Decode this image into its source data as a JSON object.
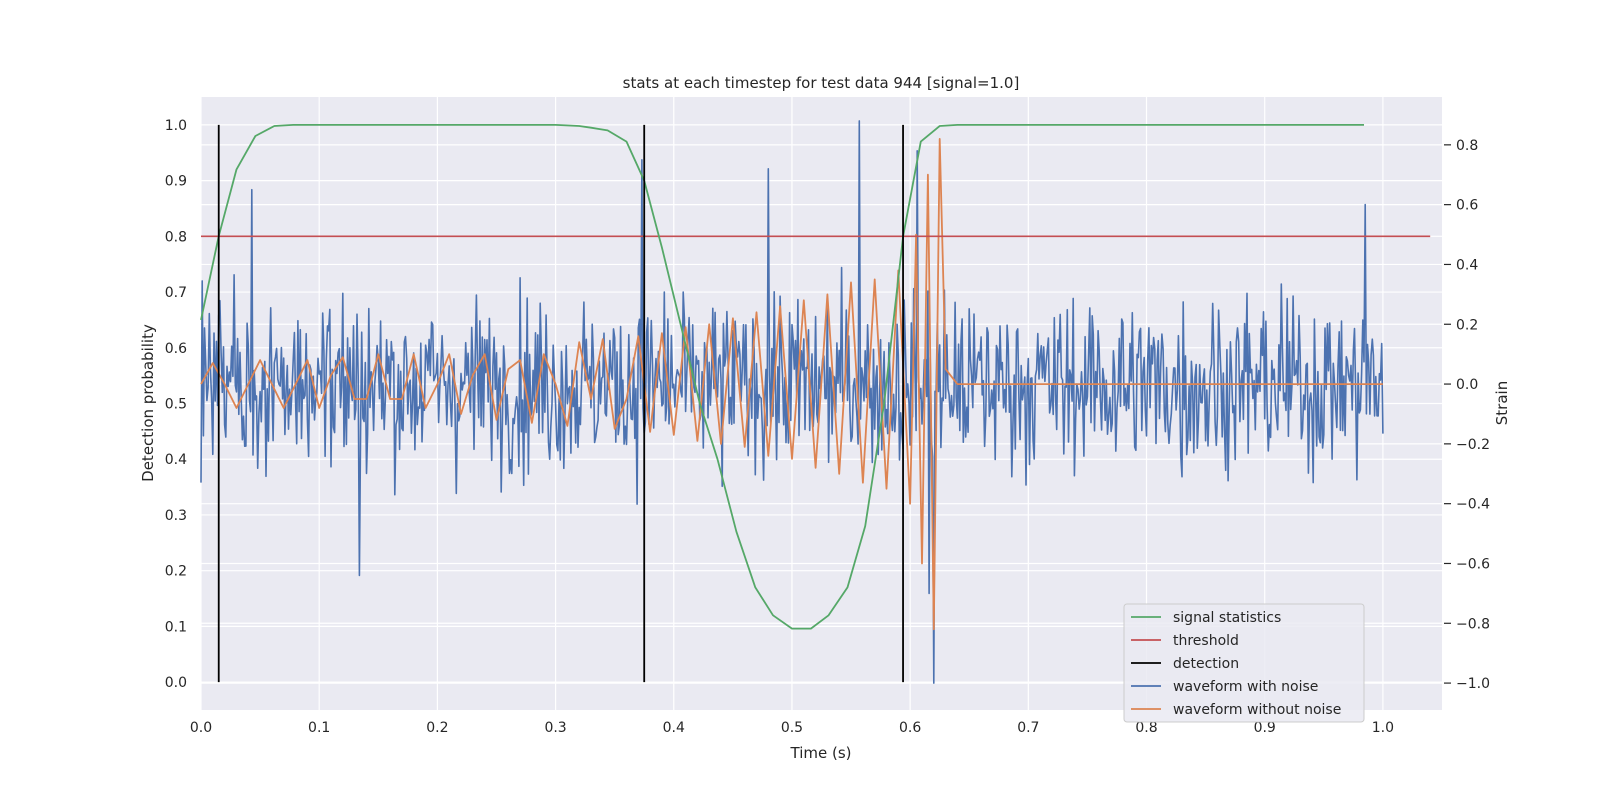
{
  "chart_data": {
    "type": "line",
    "title": "stats at each timestep for test data 944 [signal=1.0]",
    "xlabel": "Time (s)",
    "ylabel": "Detection probability",
    "ylabel_right": "Strain",
    "xlim": [
      0.0,
      1.05
    ],
    "ylim": [
      -0.05,
      1.05
    ],
    "ylim_right": [
      -1.09,
      0.96
    ],
    "x_ticks": [
      "0.0",
      "0.1",
      "0.2",
      "0.3",
      "0.4",
      "0.5",
      "0.6",
      "0.7",
      "0.8",
      "0.9",
      "1.0"
    ],
    "y_ticks": [
      "0.0",
      "0.1",
      "0.2",
      "0.3",
      "0.4",
      "0.5",
      "0.6",
      "0.7",
      "0.8",
      "0.9",
      "1.0"
    ],
    "y_ticks_right": [
      "−1.0",
      "−0.8",
      "−0.6",
      "−0.4",
      "−0.2",
      "0.0",
      "0.2",
      "0.4",
      "0.6",
      "0.8"
    ],
    "grid": true,
    "legend_position": "lower-right",
    "colors": {
      "signal": "#55a868",
      "threshold": "#c44e52",
      "detection": "#000000",
      "noisy": "#4c72b0",
      "clean": "#dd8452",
      "background": "#eaeaf2"
    },
    "series": [
      {
        "name": "signal statistics",
        "axis": "left",
        "x": [
          0.0,
          0.015,
          0.03,
          0.046,
          0.062,
          0.078,
          0.1,
          0.2,
          0.3,
          0.32,
          0.33,
          0.344,
          0.36,
          0.375,
          0.39,
          0.406,
          0.422,
          0.437,
          0.453,
          0.469,
          0.484,
          0.5,
          0.516,
          0.531,
          0.547,
          0.562,
          0.578,
          0.594,
          0.609,
          0.625,
          0.64,
          0.7,
          0.8,
          0.9,
          0.984
        ],
        "values": [
          0.65,
          0.8,
          0.92,
          0.98,
          0.998,
          1.0,
          1.0,
          1.0,
          1.0,
          0.998,
          0.995,
          0.99,
          0.97,
          0.9,
          0.78,
          0.64,
          0.5,
          0.4,
          0.27,
          0.17,
          0.12,
          0.096,
          0.096,
          0.12,
          0.17,
          0.28,
          0.5,
          0.8,
          0.97,
          0.998,
          1.0,
          1.0,
          1.0,
          1.0,
          1.0
        ]
      },
      {
        "name": "threshold",
        "axis": "left",
        "x": [
          0.0,
          1.04
        ],
        "values": [
          0.8,
          0.8
        ]
      },
      {
        "name": "detection",
        "axis": "left",
        "x": [
          0.015,
          0.375,
          0.594
        ],
        "ymin": 0.0,
        "ymax": 1.0
      },
      {
        "name": "waveform with noise",
        "axis": "right",
        "x_start": 0.0,
        "x_end": 1.0,
        "peaks": [
          [
            0.557,
            0.88
          ],
          [
            0.373,
            0.75
          ],
          [
            0.62,
            -1.0
          ],
          [
            0.616,
            -0.7
          ],
          [
            0.134,
            -0.64
          ],
          [
            0.043,
            0.65
          ],
          [
            0.985,
            0.6
          ],
          [
            0.606,
            0.78
          ],
          [
            0.48,
            0.72
          ]
        ]
      },
      {
        "name": "waveform without noise",
        "axis": "right",
        "x": [
          0.0,
          0.01,
          0.02,
          0.03,
          0.04,
          0.05,
          0.06,
          0.07,
          0.08,
          0.09,
          0.1,
          0.11,
          0.12,
          0.13,
          0.14,
          0.15,
          0.16,
          0.17,
          0.18,
          0.19,
          0.2,
          0.21,
          0.22,
          0.23,
          0.24,
          0.25,
          0.26,
          0.27,
          0.28,
          0.29,
          0.3,
          0.31,
          0.32,
          0.33,
          0.34,
          0.35,
          0.36,
          0.37,
          0.38,
          0.39,
          0.4,
          0.41,
          0.42,
          0.43,
          0.44,
          0.45,
          0.46,
          0.47,
          0.48,
          0.49,
          0.5,
          0.51,
          0.52,
          0.53,
          0.54,
          0.55,
          0.56,
          0.57,
          0.58,
          0.59,
          0.6,
          0.605,
          0.61,
          0.615,
          0.62,
          0.625,
          0.63,
          0.64,
          0.7,
          0.8,
          0.9,
          1.0
        ],
        "values": [
          0.0,
          0.07,
          0.0,
          -0.08,
          0.0,
          0.08,
          0.0,
          -0.08,
          0.0,
          0.08,
          -0.08,
          0.03,
          0.09,
          -0.05,
          -0.05,
          0.1,
          -0.05,
          -0.05,
          0.1,
          -0.08,
          0.0,
          0.1,
          -0.1,
          0.03,
          0.1,
          -0.12,
          0.05,
          0.08,
          -0.13,
          0.1,
          0.0,
          -0.14,
          0.14,
          -0.05,
          0.15,
          -0.15,
          -0.05,
          0.16,
          -0.16,
          0.17,
          -0.17,
          0.19,
          -0.19,
          0.2,
          -0.2,
          0.22,
          -0.21,
          0.24,
          -0.24,
          0.26,
          -0.25,
          0.28,
          -0.28,
          0.3,
          -0.3,
          0.34,
          -0.33,
          0.35,
          -0.35,
          0.38,
          -0.4,
          0.5,
          -0.6,
          0.7,
          -0.82,
          0.82,
          0.05,
          0.0,
          0.0,
          0.0,
          0.0,
          0.0
        ]
      }
    ],
    "legend": [
      "signal statistics",
      "threshold",
      "detection",
      "waveform with noise",
      "waveform without noise"
    ]
  }
}
